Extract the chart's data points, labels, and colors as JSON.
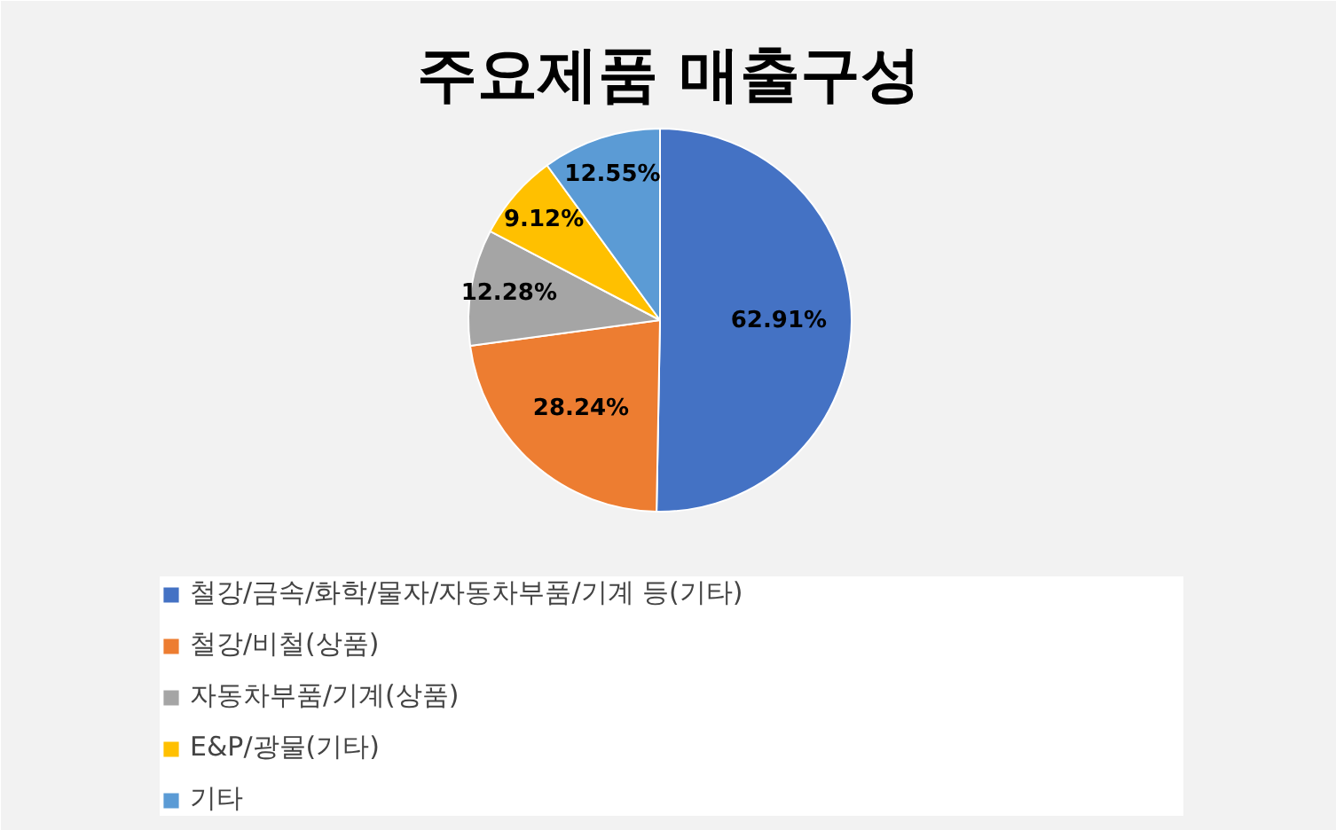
{
  "chart_data": {
    "type": "pie",
    "title": "주요제품 매출구성",
    "categories": [
      "철강/금속/화학/물자/자동차부품/기계 등(기타)",
      "철강/비철(상품)",
      "자동차부품/기계(상품)",
      "E&P/광물(기타)",
      "기타"
    ],
    "values": [
      62.91,
      28.24,
      12.28,
      9.12,
      12.55
    ],
    "colors": [
      "#4472c4",
      "#ed7d31",
      "#a5a5a5",
      "#ffc000",
      "#5b9bd5"
    ],
    "value_labels": [
      "62.91%",
      "28.24%",
      "12.28%",
      "9.12%",
      "12.55%"
    ],
    "legend": "bottom"
  }
}
